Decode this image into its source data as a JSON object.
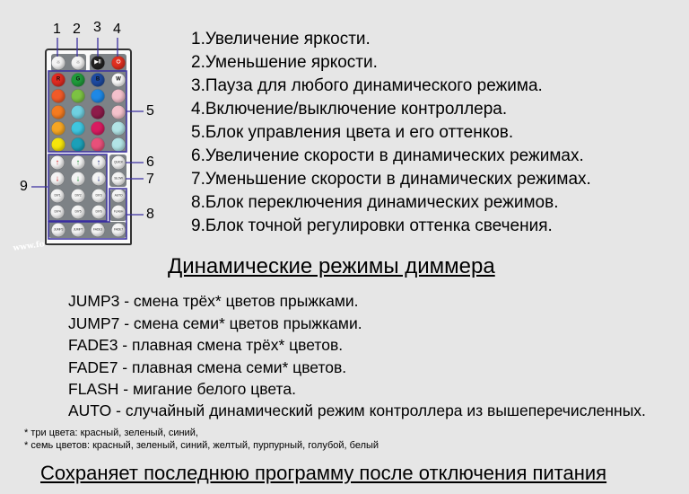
{
  "callouts": [
    "1",
    "2",
    "3",
    "4",
    "5",
    "6",
    "7",
    "8",
    "9"
  ],
  "legend": [
    "1.Увеличение яркости.",
    "2.Уменьшение яркости.",
    "3.Пауза для любого динамического режима.",
    "4.Включение/выключение контроллера.",
    "5.Блок управления цвета и его оттенков.",
    "6.Увеличение скорости в динамических режимах.",
    "7.Уменьшение скорости в динамических режимах.",
    "8.Блок переключения динамических режимов.",
    "9.Блок точной регулировки оттенка свечения."
  ],
  "heading": "Динамические режимы диммера",
  "modes": [
    "JUMP3 - смена трёх* цветов прыжками.",
    "JUMP7 - смена семи* цветов прыжками.",
    "FADE3 - плавная смена трёх* цветов.",
    "FADE7 - плавная смена семи* цветов.",
    "FLASH - мигание белого цвета.",
    "AUTO - случайный динамический режим контроллера из вышеперечисленных."
  ],
  "notes": [
    "* три цвета: красный, зеленый, синий,",
    "* семь цветов: красный, зеленый, синий, желтый, пурпурный, голубой, белый"
  ],
  "footer": "Сохраняет последнюю программу после отключения питания",
  "watermark": "www.foton.ua",
  "remote": {
    "top_buttons": [
      {
        "icon": "brightness-up-icon",
        "color": "#f4f4f4",
        "glyph": "☼"
      },
      {
        "icon": "brightness-down-icon",
        "color": "#f4f4f4",
        "glyph": "☼"
      },
      {
        "icon": "play-pause-icon",
        "color": "#222222",
        "glyph": "▶‖"
      },
      {
        "icon": "power-icon",
        "color": "#e03020",
        "glyph": "⏻"
      }
    ],
    "color_buttons": [
      [
        {
          "label": "R",
          "color": "#e02a20"
        },
        {
          "label": "G",
          "color": "#1f9a3a"
        },
        {
          "label": "B",
          "color": "#1d4aa0"
        },
        {
          "label": "W",
          "color": "#f8f8f8"
        }
      ],
      [
        {
          "color": "#f05a28"
        },
        {
          "color": "#7cc243"
        },
        {
          "color": "#1e88e5"
        },
        {
          "color": "#f3c0cc"
        }
      ],
      [
        {
          "color": "#f47b20"
        },
        {
          "color": "#6fd0e0"
        },
        {
          "color": "#8e1b4a"
        },
        {
          "color": "#f4c2cc"
        }
      ],
      [
        {
          "color": "#f5a623"
        },
        {
          "color": "#3ec6e0"
        },
        {
          "color": "#d81b60"
        },
        {
          "color": "#b2e4e6"
        }
      ],
      [
        {
          "color": "#f5e50a"
        },
        {
          "color": "#1ba0b8"
        },
        {
          "color": "#e8507a"
        },
        {
          "color": "#b2e4e6"
        }
      ]
    ],
    "arrow_buttons": [
      {
        "glyph": "🡑",
        "color": "#d02020"
      },
      {
        "glyph": "🡑",
        "color": "#1a8a30"
      },
      {
        "glyph": "🡑",
        "color": "#1a2a80"
      },
      {
        "glyph": "🡓",
        "color": "#d02020"
      },
      {
        "glyph": "🡓",
        "color": "#1a8a30"
      },
      {
        "glyph": "🡓",
        "color": "#1a2a80"
      }
    ],
    "diy_buttons": [
      "DIY1",
      "DIY2",
      "DIY3",
      "DIY4",
      "DIY5",
      "DIY6"
    ],
    "speed_buttons": [
      "QUICK",
      "SLOW"
    ],
    "mode_buttons_right": [
      "AUTO",
      "FLASH"
    ],
    "mode_buttons_bottom": [
      "JUMP3",
      "JUMP7",
      "FADE3",
      "FADE7"
    ],
    "outline_color": "#3a2fa0"
  }
}
